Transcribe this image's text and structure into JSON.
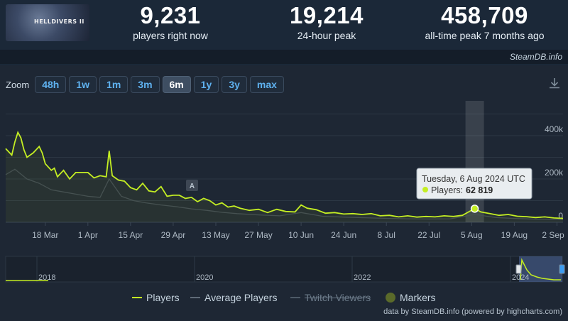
{
  "header": {
    "thumbnail_text": "HELLDIVERS II",
    "stats": [
      {
        "value": "9,231",
        "label": "players right now"
      },
      {
        "value": "19,214",
        "label": "24-hour peak"
      },
      {
        "value": "458,709",
        "label": "all-time peak 7 months ago"
      }
    ],
    "source": "SteamDB.info"
  },
  "zoom": {
    "label": "Zoom",
    "buttons": [
      "48h",
      "1w",
      "1m",
      "3m",
      "6m",
      "1y",
      "3y",
      "max"
    ],
    "active": "6m"
  },
  "tooltip": {
    "date": "Tuesday, 6 Aug 2024 UTC",
    "series_label": "Players:",
    "value": "62 819"
  },
  "annotation_marker": "A",
  "navigator_labels": [
    "2018",
    "2020",
    "2022",
    "2024"
  ],
  "legend": [
    {
      "name": "Players",
      "color": "#c4ee23",
      "hidden": false
    },
    {
      "name": "Average Players",
      "color": "#5f6b78",
      "hidden": false
    },
    {
      "name": "Twitch Viewers",
      "color": "#6b7a89",
      "hidden": true
    },
    {
      "name": "Markers",
      "color": "#5a6a2a",
      "hidden": false
    }
  ],
  "credits": "data by SteamDB.info (powered by highcharts.com)",
  "colors": {
    "players": "#c4ee23",
    "average": "#5f6b78",
    "background": "#1b2838"
  },
  "chart_data": {
    "type": "line",
    "x_tick_labels": [
      "18 Mar",
      "1 Apr",
      "15 Apr",
      "29 Apr",
      "13 May",
      "27 May",
      "10 Jun",
      "24 Jun",
      "8 Jul",
      "22 Jul",
      "5 Aug",
      "19 Aug",
      "2 Sep"
    ],
    "y_tick_labels": [
      "0",
      "200k",
      "400k"
    ],
    "ylim": [
      0,
      450000
    ],
    "xlim": [
      "2024-03-05",
      "2024-09-04"
    ],
    "grid": true,
    "legend_position": "bottom",
    "series": [
      {
        "name": "Players",
        "x": [
          "2024-03-05",
          "2024-03-07",
          "2024-03-08",
          "2024-03-09",
          "2024-03-10",
          "2024-03-11",
          "2024-03-12",
          "2024-03-14",
          "2024-03-16",
          "2024-03-17",
          "2024-03-18",
          "2024-03-20",
          "2024-03-21",
          "2024-03-22",
          "2024-03-24",
          "2024-03-26",
          "2024-03-28",
          "2024-03-30",
          "2024-04-01",
          "2024-04-03",
          "2024-04-05",
          "2024-04-07",
          "2024-04-08",
          "2024-04-09",
          "2024-04-11",
          "2024-04-13",
          "2024-04-15",
          "2024-04-17",
          "2024-04-19",
          "2024-04-21",
          "2024-04-23",
          "2024-04-25",
          "2024-04-27",
          "2024-04-29",
          "2024-05-01",
          "2024-05-03",
          "2024-05-05",
          "2024-05-07",
          "2024-05-09",
          "2024-05-11",
          "2024-05-13",
          "2024-05-15",
          "2024-05-17",
          "2024-05-19",
          "2024-05-21",
          "2024-05-24",
          "2024-05-27",
          "2024-05-30",
          "2024-06-02",
          "2024-06-05",
          "2024-06-08",
          "2024-06-10",
          "2024-06-12",
          "2024-06-15",
          "2024-06-18",
          "2024-06-21",
          "2024-06-24",
          "2024-06-27",
          "2024-06-30",
          "2024-07-03",
          "2024-07-06",
          "2024-07-09",
          "2024-07-12",
          "2024-07-15",
          "2024-07-18",
          "2024-07-21",
          "2024-07-24",
          "2024-07-27",
          "2024-07-30",
          "2024-08-02",
          "2024-08-04",
          "2024-08-06",
          "2024-08-08",
          "2024-08-11",
          "2024-08-14",
          "2024-08-17",
          "2024-08-20",
          "2024-08-23",
          "2024-08-26",
          "2024-08-29",
          "2024-09-01",
          "2024-09-04"
        ],
        "y": [
          340000,
          310000,
          370000,
          415000,
          390000,
          335000,
          300000,
          320000,
          350000,
          320000,
          270000,
          240000,
          250000,
          210000,
          240000,
          200000,
          230000,
          230000,
          230000,
          205000,
          215000,
          210000,
          330000,
          215000,
          195000,
          190000,
          160000,
          150000,
          180000,
          145000,
          140000,
          165000,
          120000,
          125000,
          125000,
          110000,
          115000,
          95000,
          110000,
          100000,
          80000,
          90000,
          70000,
          75000,
          65000,
          55000,
          60000,
          45000,
          60000,
          50000,
          48000,
          80000,
          65000,
          58000,
          42000,
          45000,
          38000,
          40000,
          36000,
          40000,
          30000,
          32000,
          25000,
          30000,
          24000,
          27000,
          25000,
          30000,
          27000,
          32000,
          48000,
          62819,
          48000,
          40000,
          32000,
          36000,
          28000,
          26000,
          22000,
          25000,
          20000,
          18000
        ]
      },
      {
        "name": "Average Players",
        "x": [
          "2024-03-05",
          "2024-03-08",
          "2024-03-12",
          "2024-03-16",
          "2024-03-20",
          "2024-03-24",
          "2024-03-28",
          "2024-04-01",
          "2024-04-05",
          "2024-04-08",
          "2024-04-12",
          "2024-04-16",
          "2024-04-20",
          "2024-04-25",
          "2024-04-30",
          "2024-05-05",
          "2024-05-10",
          "2024-05-15",
          "2024-05-20",
          "2024-05-27",
          "2024-06-03",
          "2024-06-10",
          "2024-06-17",
          "2024-06-24",
          "2024-07-01",
          "2024-07-08",
          "2024-07-15",
          "2024-07-22",
          "2024-07-29",
          "2024-08-06",
          "2024-08-13",
          "2024-08-20",
          "2024-08-27",
          "2024-09-04"
        ],
        "y": [
          220000,
          245000,
          200000,
          180000,
          150000,
          140000,
          130000,
          120000,
          115000,
          200000,
          120000,
          100000,
          90000,
          80000,
          72000,
          62000,
          55000,
          46000,
          40000,
          34000,
          30000,
          45000,
          28000,
          24000,
          21000,
          18000,
          16000,
          15000,
          16000,
          36000,
          22000,
          17000,
          14000,
          12000
        ]
      }
    ]
  }
}
